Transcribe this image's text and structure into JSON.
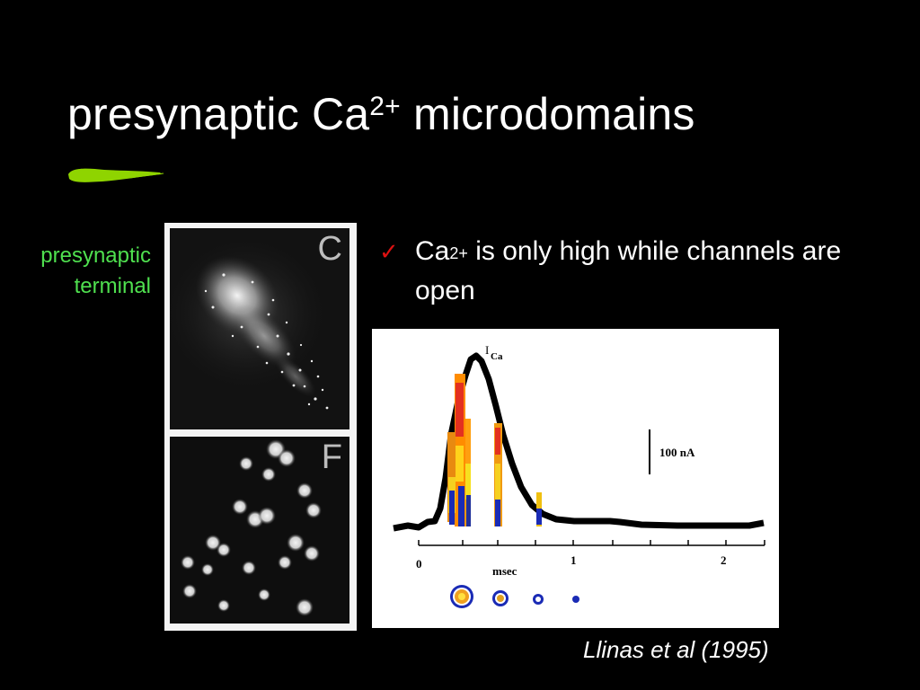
{
  "slide": {
    "title_prefix": "presynaptic Ca",
    "title_sup": "2+",
    "title_suffix": " microdomains",
    "side_label_line1": "presynaptic",
    "side_label_line2": "terminal",
    "panel_c_letter": "C",
    "panel_f_letter": "F",
    "bullet_check": "✓",
    "bullet_prefix": "Ca",
    "bullet_sup": "2+",
    "bullet_suffix": " is only high while channels are open",
    "credit": "Llinas et al (1995)",
    "accent_color": "#8fd400",
    "label_color": "#4fe04f"
  },
  "figure": {
    "ica_label_main": "I",
    "ica_label_sub": "Ca",
    "scale_label": "100 nA",
    "tick_0": "0",
    "tick_1": "1",
    "tick_2": "2",
    "x_unit": "msec"
  }
}
